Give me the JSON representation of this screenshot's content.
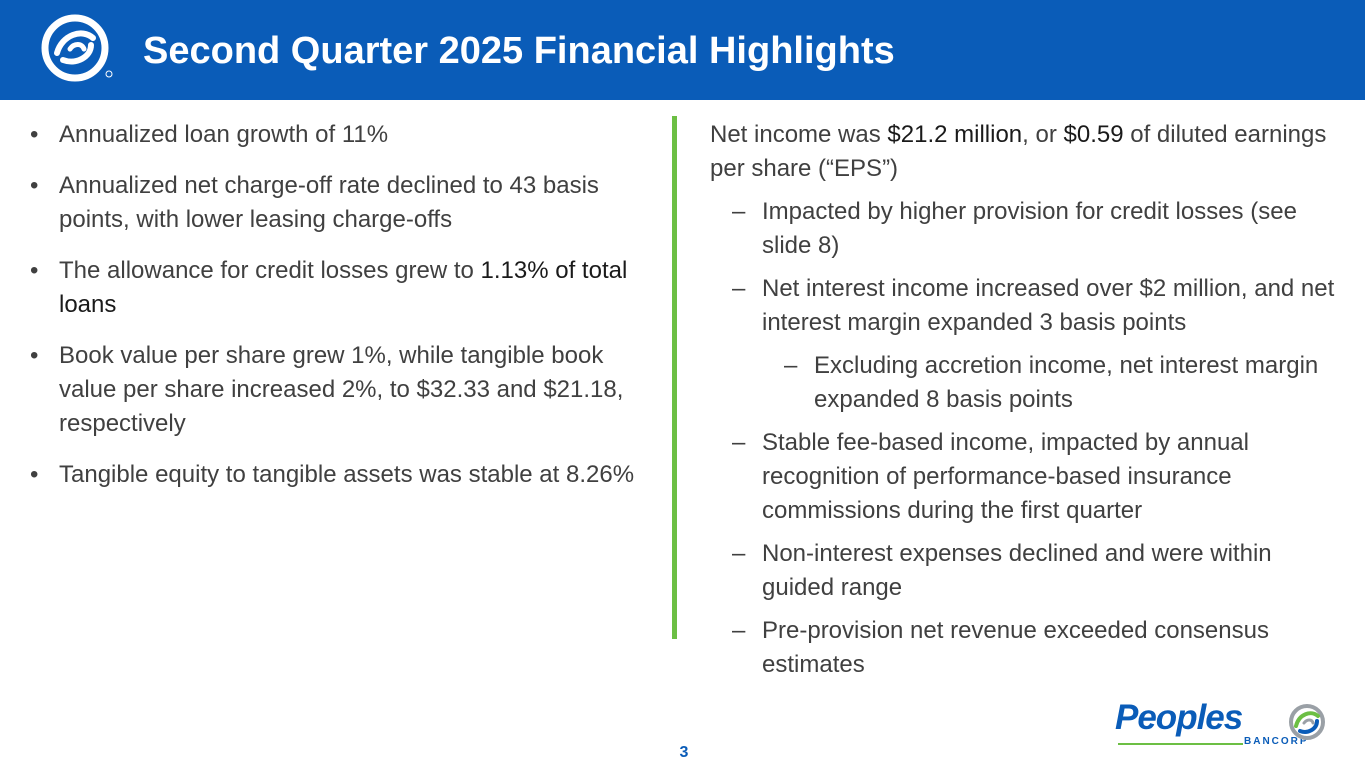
{
  "header": {
    "title": "Second Quarter 2025 Financial Highlights"
  },
  "left": {
    "bullet_char": "•",
    "bullets": [
      {
        "parts": [
          "Annualized loan growth of 11%"
        ]
      },
      {
        "parts": [
          "Annualized net charge-off rate declined to 43 basis points, with lower leasing charge-offs"
        ]
      },
      {
        "parts": [
          "The allowance for credit losses grew to ",
          "1.13% of total loans"
        ]
      },
      {
        "parts": [
          "Book value per share grew 1%, while tangible book value per share increased 2%, to $32.33 and $21.18, respectively"
        ]
      },
      {
        "parts": [
          "Tangible equity to tangible assets was stable at 8.26%"
        ]
      }
    ]
  },
  "right": {
    "main": [
      "Net income was ",
      "$21.2 million",
      ", or ",
      "$0.59",
      " of diluted earnings per share (“EPS”)"
    ],
    "dash_char": "–",
    "subs": [
      "Impacted by higher provision for credit losses (see slide 8)",
      "Net interest income increased over $2 million, and net interest margin expanded 3 basis points",
      "Excluding accretion income, net interest margin expanded 8 basis points",
      "Stable fee-based income, impacted by annual recognition of performance-based insurance commissions during the first quarter",
      "Non-interest expenses declined and were within guided range",
      "Pre-provision net revenue exceeded consensus estimates"
    ]
  },
  "footer": {
    "page_number": "3"
  },
  "brand": {
    "name": "Peoples",
    "sub": "BANCORP",
    "registered": "®"
  },
  "colors": {
    "primary": "#0a5cb8",
    "accent": "#6cbf44",
    "text": "#404040"
  },
  "icons": {
    "header_logo": "peoples-swirl-logo-icon",
    "brand_mark": "peoples-swirl-mark-icon"
  }
}
